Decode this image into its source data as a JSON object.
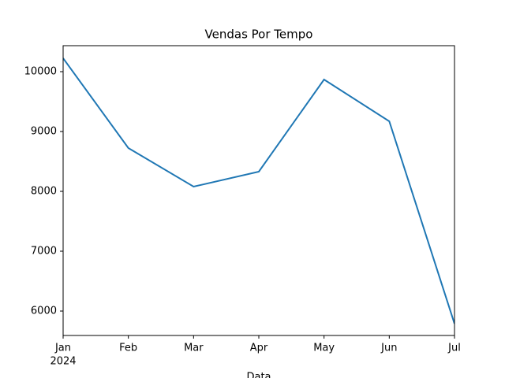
{
  "chart_data": {
    "type": "line",
    "title": "Vendas Por Tempo",
    "x_label": "Data",
    "categories": [
      "Jan",
      "Feb",
      "Mar",
      "Apr",
      "May",
      "Jun",
      "Jul"
    ],
    "year_label": "2024",
    "series": [
      {
        "name": "Vendas",
        "color": "#1f77b4",
        "values": [
          10224,
          8724,
          8079,
          8329,
          9868,
          9171,
          5789
        ]
      }
    ],
    "ylim": [
      5592,
      10434
    ],
    "yticks": [
      6000,
      7000,
      8000,
      9000,
      10000
    ]
  }
}
